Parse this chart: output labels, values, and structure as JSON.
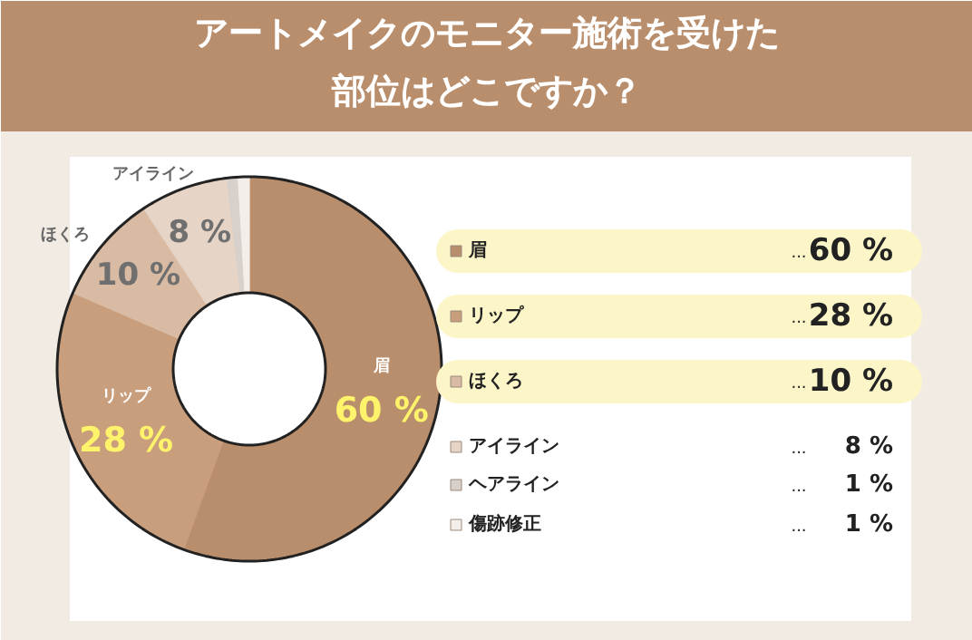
{
  "chart_data": {
    "type": "donut",
    "title": "アートメイクのモニター施術を受けた部位はどこですか？",
    "categories": [
      "眉",
      "リップ",
      "ほくろ",
      "アイライン",
      "ヘアライン",
      "傷跡修正"
    ],
    "values": [
      60,
      28,
      10,
      8,
      1,
      1
    ],
    "value_labels": [
      "60 %",
      "28 %",
      "10 %",
      "8 %",
      "1 %",
      "1 %"
    ],
    "legend": "right",
    "annotations": [
      "...",
      "...",
      "...",
      "...",
      "...",
      "..."
    ],
    "colors": [
      "#b98e6c",
      "#c99e7d",
      "#d9bba3",
      "#e6d4c6",
      "#d8d0ca",
      "#f3eee9"
    ]
  }
}
